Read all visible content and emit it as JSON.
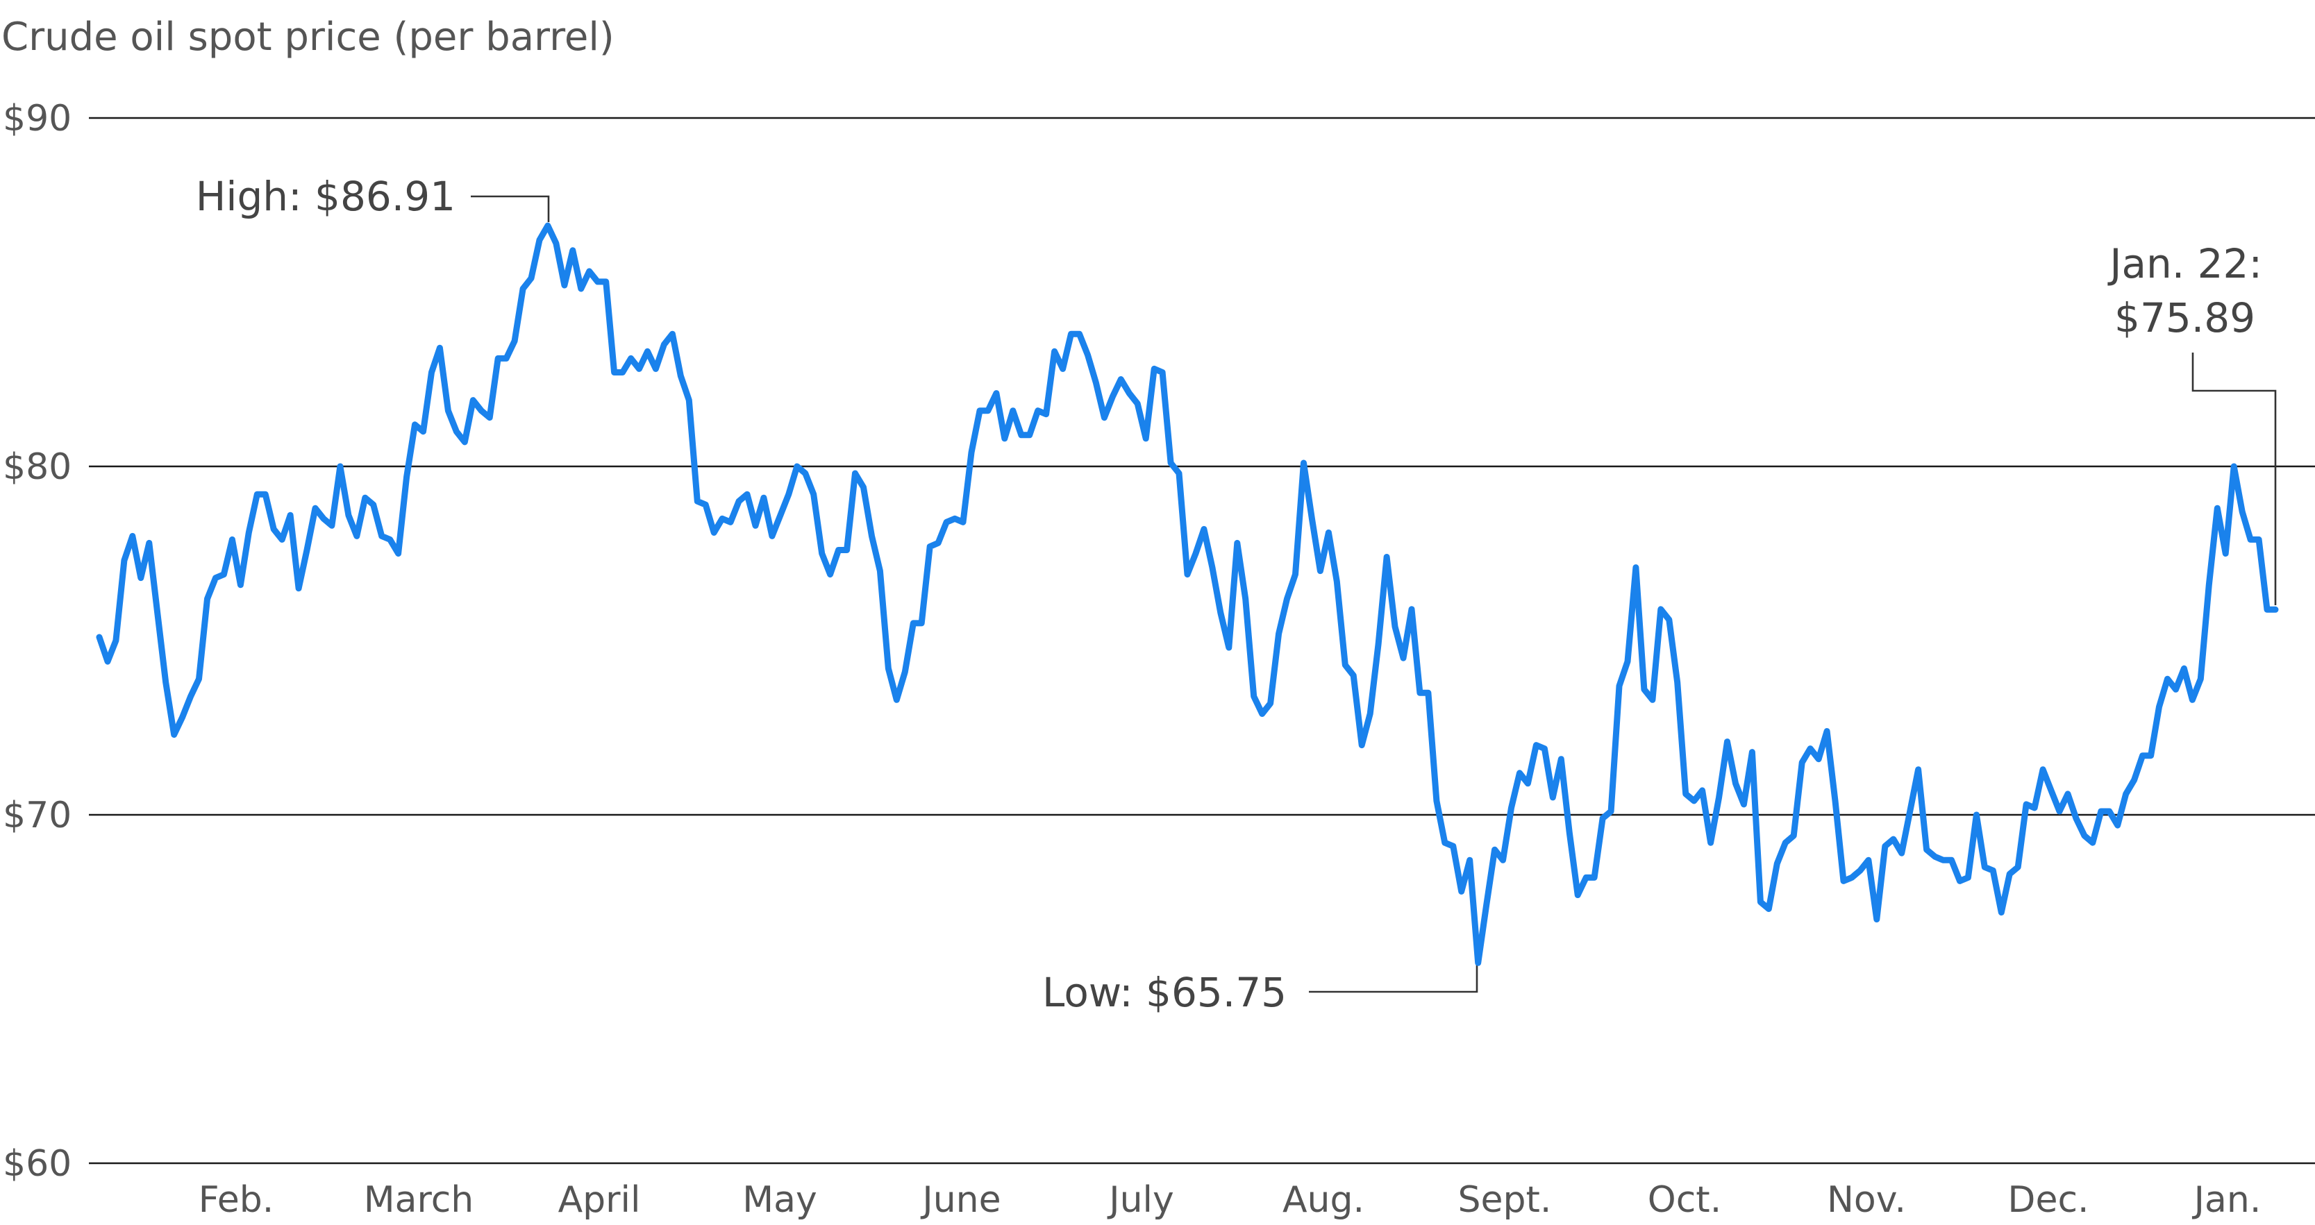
{
  "chart_data": {
    "type": "line",
    "title": "Crude oil spot price (per barrel)",
    "xlabel": "",
    "ylabel": "",
    "ylim": [
      60,
      90
    ],
    "y_ticks": [
      {
        "value": 90,
        "label": "$90"
      },
      {
        "value": 80,
        "label": "$80"
      },
      {
        "value": 70,
        "label": "$70"
      },
      {
        "value": 60,
        "label": "$60"
      }
    ],
    "x_tick_labels": [
      "Feb.",
      "March",
      "April",
      "May",
      "June",
      "July",
      "Aug.",
      "Sept.",
      "Oct.",
      "Nov.",
      "Dec.",
      "Jan."
    ],
    "grid": true,
    "line_color": "#1a82ec",
    "series": [
      {
        "values": [
          75.1,
          74.4,
          75.0,
          77.3,
          78.0,
          76.8,
          77.8,
          75.8,
          73.8,
          72.3,
          72.8,
          73.4,
          73.9,
          76.2,
          76.8,
          76.9,
          77.9,
          76.6,
          78.1,
          79.2,
          79.2,
          78.2,
          77.9,
          78.6,
          76.5,
          77.6,
          78.8,
          78.5,
          78.3,
          80.0,
          78.6,
          78.0,
          79.1,
          78.9,
          78.0,
          77.9,
          77.5,
          79.7,
          81.2,
          81.0,
          82.7,
          83.4,
          81.6,
          81.0,
          80.7,
          81.9,
          81.6,
          81.4,
          83.1,
          83.1,
          83.6,
          85.1,
          85.4,
          86.5,
          86.91,
          86.4,
          85.2,
          86.2,
          85.1,
          85.6,
          85.3,
          85.3,
          82.7,
          82.7,
          83.1,
          82.8,
          83.3,
          82.8,
          83.5,
          83.8,
          82.6,
          81.9,
          79.0,
          78.9,
          78.1,
          78.5,
          78.4,
          79.0,
          79.2,
          78.3,
          79.1,
          78.0,
          78.6,
          79.2,
          80.0,
          79.8,
          79.2,
          77.5,
          76.9,
          77.6,
          77.6,
          79.8,
          79.4,
          78.0,
          77.0,
          74.2,
          73.3,
          74.1,
          75.5,
          75.5,
          77.7,
          77.8,
          78.4,
          78.5,
          78.4,
          80.4,
          81.6,
          81.6,
          82.1,
          80.8,
          81.6,
          80.9,
          80.9,
          81.6,
          81.5,
          83.3,
          82.8,
          83.8,
          83.8,
          83.2,
          82.4,
          81.4,
          82.0,
          82.5,
          82.1,
          81.8,
          80.8,
          82.8,
          82.7,
          80.1,
          79.8,
          76.9,
          77.5,
          78.2,
          77.1,
          75.8,
          74.8,
          77.8,
          76.2,
          73.4,
          72.9,
          73.2,
          75.2,
          76.2,
          76.9,
          80.1,
          78.5,
          77.0,
          78.1,
          76.7,
          74.3,
          74.0,
          72.0,
          72.9,
          74.9,
          77.4,
          75.4,
          74.5,
          75.9,
          73.5,
          73.5,
          70.4,
          69.2,
          69.1,
          67.8,
          68.7,
          65.75,
          67.4,
          69.0,
          68.7,
          70.2,
          71.2,
          70.9,
          72.0,
          71.9,
          70.5,
          71.6,
          69.5,
          67.7,
          68.2,
          68.2,
          69.9,
          70.1,
          73.7,
          74.4,
          77.1,
          73.6,
          73.3,
          75.9,
          75.6,
          73.8,
          70.6,
          70.4,
          70.7,
          69.2,
          70.5,
          72.1,
          70.9,
          70.3,
          71.8,
          67.5,
          67.3,
          68.6,
          69.2,
          69.4,
          71.5,
          71.9,
          71.6,
          72.4,
          70.4,
          68.1,
          68.2,
          68.4,
          68.7,
          67.0,
          69.1,
          69.3,
          68.9,
          70.1,
          71.3,
          69.0,
          68.8,
          68.7,
          68.7,
          68.1,
          68.2,
          70.0,
          68.5,
          68.4,
          67.2,
          68.3,
          68.5,
          70.3,
          70.2,
          71.3,
          70.7,
          70.1,
          70.6,
          69.9,
          69.4,
          69.2,
          70.1,
          70.1,
          69.7,
          70.6,
          71.0,
          71.7,
          71.7,
          73.1,
          73.9,
          73.6,
          74.2,
          73.3,
          73.9,
          76.6,
          78.8,
          77.5,
          80.0,
          78.7,
          77.9,
          77.9,
          75.89,
          75.89
        ]
      }
    ],
    "annotations": [
      {
        "label": "High: $86.91",
        "value": 86.91,
        "index": 54
      },
      {
        "label": "Low: $65.75",
        "value": 65.75,
        "index": 164
      },
      {
        "label_line1": "Jan. 22:",
        "label_line2": "$75.89",
        "value": 75.89,
        "index": 261
      }
    ]
  }
}
